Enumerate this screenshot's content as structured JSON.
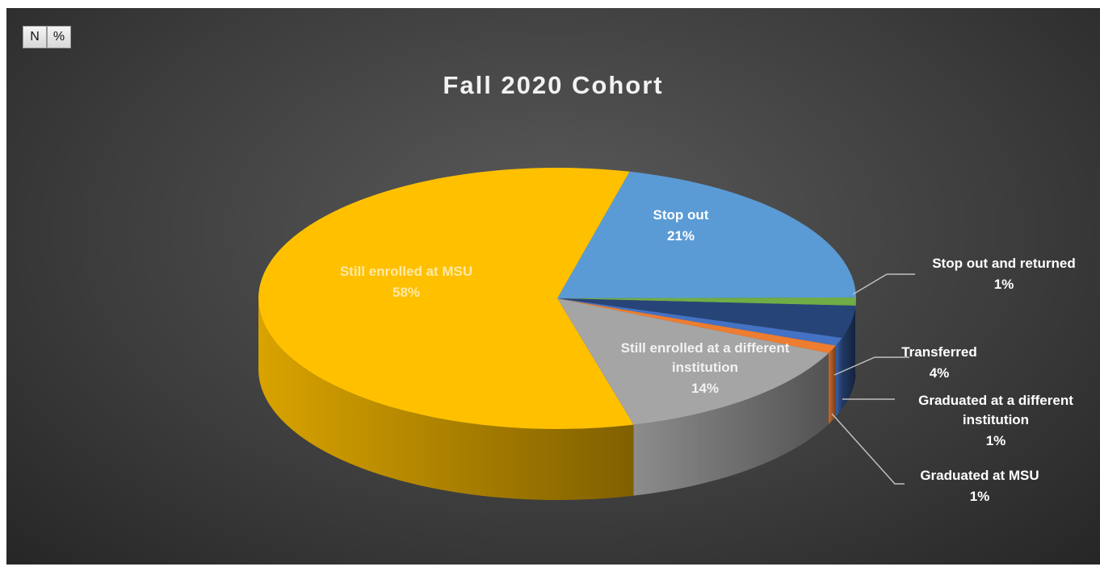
{
  "buttons": [
    "N",
    "%"
  ],
  "chart_data": {
    "type": "pie",
    "title": "Fall 2020 Cohort",
    "categories": [
      "Stop out",
      "Stop out and returned",
      "Transferred",
      "Graduated at a different institution",
      "Graduated at MSU",
      "Still enrolled at a different institution",
      "Still enrolled at MSU"
    ],
    "values": [
      21,
      1,
      4,
      1,
      1,
      14,
      58
    ],
    "value_labels": [
      "21%",
      "1%",
      "4%",
      "1%",
      "1%",
      "14%",
      "58%"
    ],
    "colors": [
      "#5b9bd5",
      "#70ad47",
      "#264478",
      "#4472c4",
      "#ed7d31",
      "#a5a5a5",
      "#ffc000"
    ]
  }
}
